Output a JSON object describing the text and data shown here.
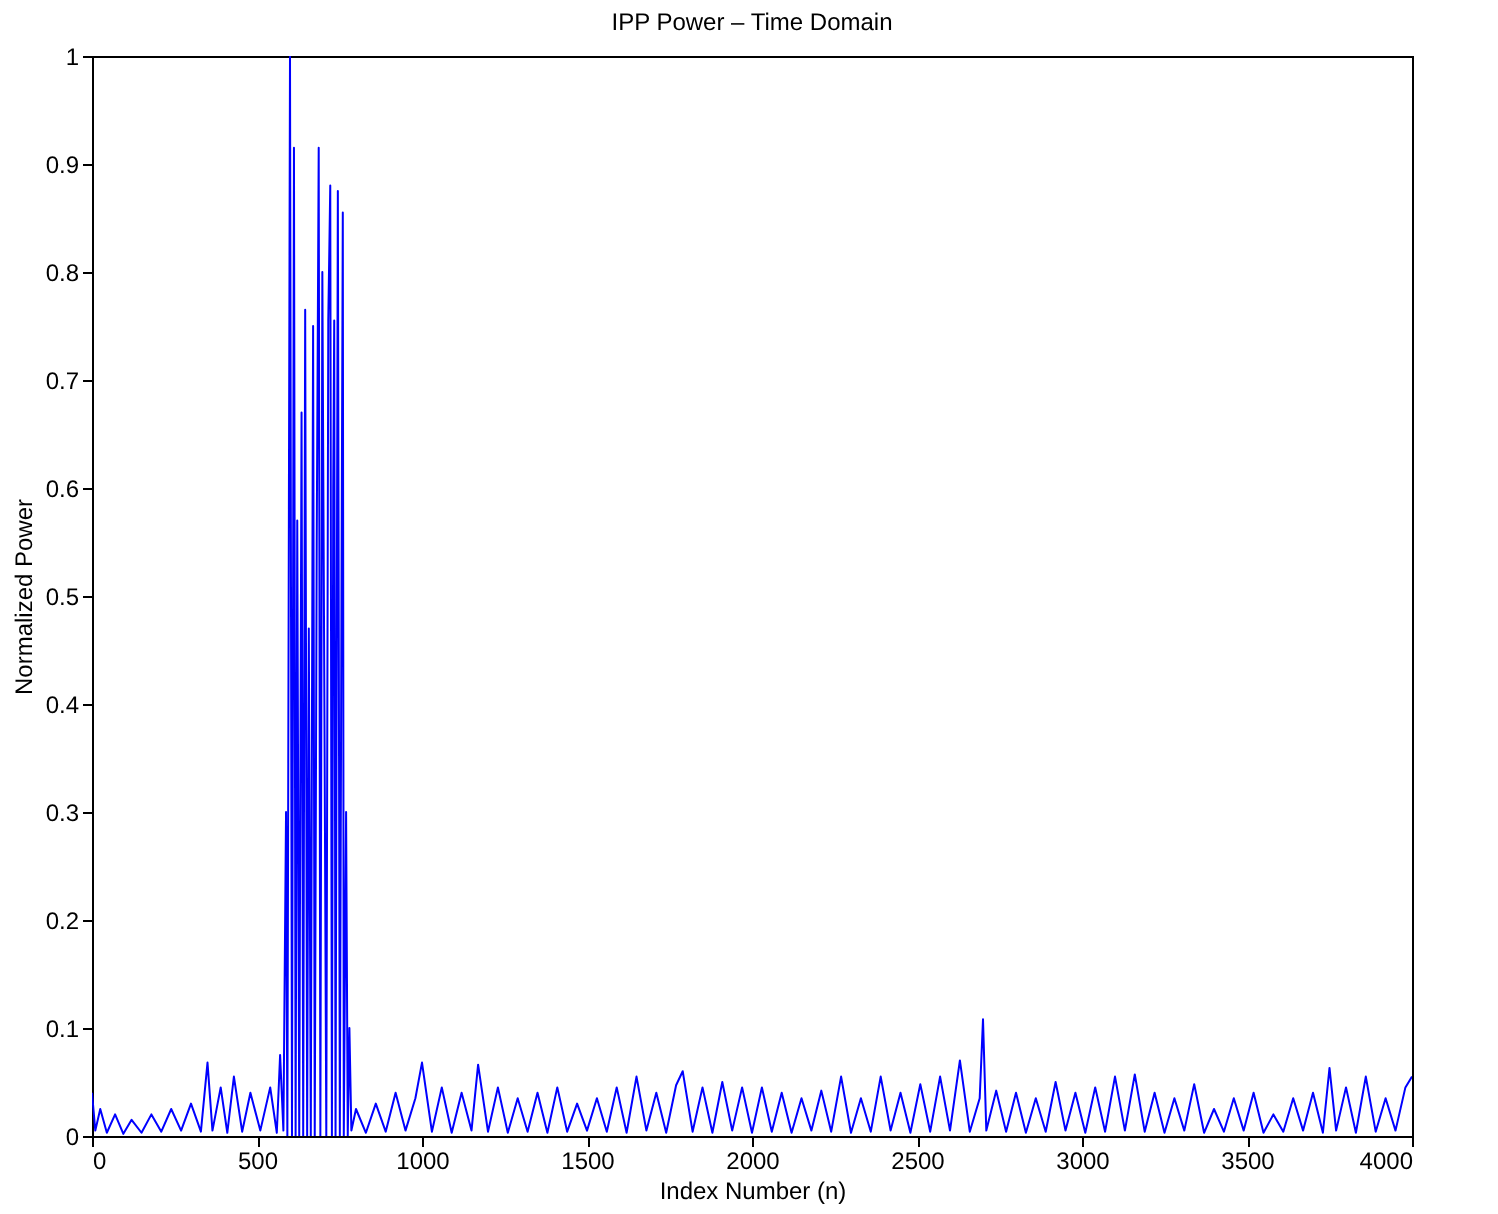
{
  "chart_data": {
    "type": "line",
    "title": "IPP Power – Time Domain",
    "xlabel": "Index Number (n)",
    "ylabel": "Normalized Power",
    "x": [
      0,
      10,
      25,
      45,
      70,
      95,
      120,
      150,
      180,
      210,
      240,
      270,
      300,
      330,
      350,
      365,
      390,
      410,
      430,
      455,
      480,
      510,
      540,
      560,
      570,
      580,
      588,
      592,
      600,
      606,
      612,
      617,
      622,
      628,
      635,
      640,
      646,
      652,
      657,
      663,
      670,
      675,
      681,
      687,
      692,
      698,
      705,
      710,
      716,
      722,
      727,
      731,
      734,
      738,
      745,
      751,
      756,
      760,
      763,
      770,
      775,
      780,
      786,
      800,
      830,
      860,
      890,
      920,
      950,
      980,
      1000,
      1030,
      1060,
      1090,
      1120,
      1150,
      1170,
      1200,
      1230,
      1260,
      1290,
      1320,
      1350,
      1380,
      1410,
      1440,
      1470,
      1500,
      1530,
      1560,
      1590,
      1620,
      1650,
      1680,
      1710,
      1740,
      1770,
      1790,
      1820,
      1850,
      1880,
      1910,
      1940,
      1970,
      2000,
      2030,
      2060,
      2090,
      2120,
      2150,
      2180,
      2210,
      2240,
      2270,
      2300,
      2330,
      2360,
      2390,
      2420,
      2450,
      2480,
      2510,
      2540,
      2570,
      2600,
      2630,
      2660,
      2690,
      2700,
      2710,
      2740,
      2770,
      2800,
      2830,
      2860,
      2890,
      2920,
      2950,
      2980,
      3010,
      3040,
      3070,
      3100,
      3130,
      3160,
      3190,
      3220,
      3250,
      3280,
      3310,
      3340,
      3370,
      3400,
      3430,
      3460,
      3490,
      3520,
      3550,
      3580,
      3610,
      3640,
      3670,
      3700,
      3730,
      3750,
      3770,
      3800,
      3830,
      3860,
      3890,
      3920,
      3950,
      3980,
      4000
    ],
    "series": [
      {
        "color": "#0000ff",
        "values": [
          0.04,
          0.005,
          0.025,
          0.003,
          0.02,
          0.002,
          0.015,
          0.003,
          0.02,
          0.004,
          0.025,
          0.005,
          0.03,
          0.004,
          0.068,
          0.005,
          0.045,
          0.003,
          0.055,
          0.004,
          0.04,
          0.005,
          0.045,
          0.003,
          0.075,
          0.005,
          0.3,
          0.0,
          1.0,
          0.0,
          0.915,
          0.0,
          0.57,
          0.0,
          0.67,
          0.0,
          0.765,
          0.0,
          0.47,
          0.0,
          0.75,
          0.0,
          0.55,
          0.915,
          0.0,
          0.8,
          0.35,
          0.0,
          0.755,
          0.88,
          0.0,
          0.6,
          0.755,
          0.0,
          0.875,
          0.0,
          0.5,
          0.855,
          0.0,
          0.3,
          0.0,
          0.1,
          0.005,
          0.025,
          0.003,
          0.03,
          0.004,
          0.04,
          0.005,
          0.035,
          0.068,
          0.004,
          0.045,
          0.003,
          0.04,
          0.005,
          0.066,
          0.004,
          0.045,
          0.003,
          0.035,
          0.004,
          0.04,
          0.003,
          0.045,
          0.004,
          0.03,
          0.005,
          0.035,
          0.004,
          0.045,
          0.003,
          0.055,
          0.005,
          0.04,
          0.003,
          0.047,
          0.06,
          0.004,
          0.045,
          0.003,
          0.05,
          0.005,
          0.045,
          0.003,
          0.045,
          0.004,
          0.04,
          0.003,
          0.035,
          0.005,
          0.042,
          0.004,
          0.055,
          0.003,
          0.035,
          0.004,
          0.055,
          0.005,
          0.04,
          0.003,
          0.048,
          0.004,
          0.055,
          0.005,
          0.07,
          0.004,
          0.035,
          0.108,
          0.005,
          0.042,
          0.004,
          0.04,
          0.003,
          0.035,
          0.004,
          0.05,
          0.005,
          0.04,
          0.003,
          0.045,
          0.004,
          0.055,
          0.005,
          0.057,
          0.004,
          0.04,
          0.003,
          0.035,
          0.005,
          0.048,
          0.003,
          0.025,
          0.004,
          0.035,
          0.005,
          0.04,
          0.003,
          0.02,
          0.004,
          0.035,
          0.005,
          0.04,
          0.003,
          0.063,
          0.005,
          0.045,
          0.003,
          0.055,
          0.004,
          0.035,
          0.005,
          0.045,
          0.055
        ]
      }
    ],
    "xlim": [
      0,
      4000
    ],
    "xticks": [
      0,
      500,
      1000,
      1500,
      2000,
      2500,
      3000,
      3500,
      4000
    ],
    "ylim": [
      0,
      1
    ],
    "yticks": [
      0,
      0.1,
      0.2,
      0.3,
      0.4,
      0.5,
      0.6,
      0.7,
      0.8,
      0.9,
      1
    ],
    "grid": false,
    "marker": "none",
    "line_style": "solid"
  }
}
